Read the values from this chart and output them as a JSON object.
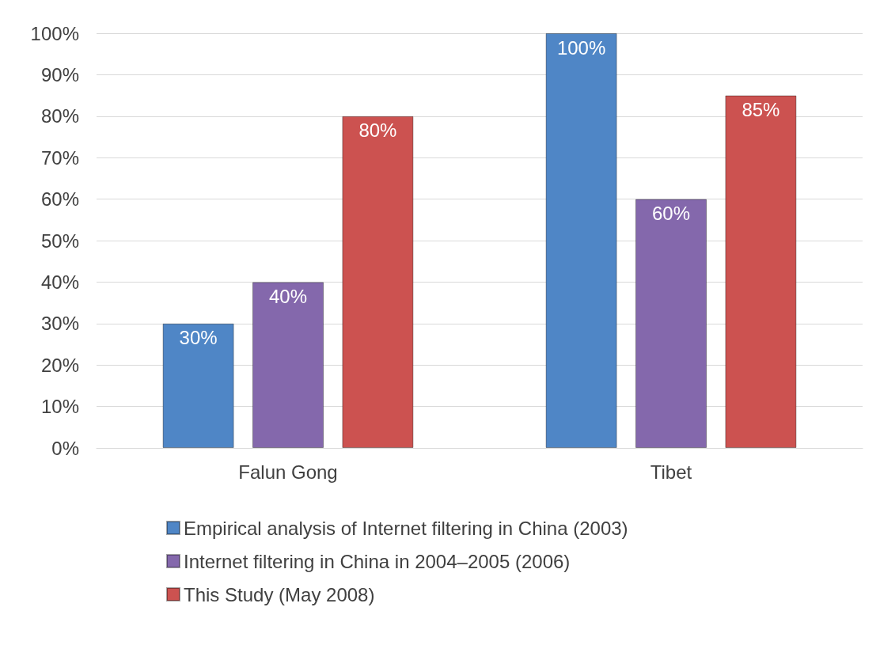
{
  "chart_data": {
    "type": "bar",
    "categories": [
      "Falun Gong",
      "Tibet"
    ],
    "series": [
      {
        "name": "Empirical analysis of Internet filtering in China (2003)",
        "color": "#4f86c6",
        "values": [
          30,
          100
        ],
        "value_labels": [
          "30%",
          "100%"
        ]
      },
      {
        "name": "Internet filtering in China in 2004–2005 (2006)",
        "color": "#8468ac",
        "values": [
          40,
          60
        ],
        "value_labels": [
          "40%",
          "60%"
        ]
      },
      {
        "name": "This Study (May 2008)",
        "color": "#cc5250",
        "values": [
          80,
          85
        ],
        "value_labels": [
          "80%",
          "85%"
        ]
      }
    ],
    "ylim": [
      0,
      100
    ],
    "yticks": [
      {
        "value": 0,
        "label": "0%"
      },
      {
        "value": 10,
        "label": "10%"
      },
      {
        "value": 20,
        "label": "20%"
      },
      {
        "value": 30,
        "label": "30%"
      },
      {
        "value": 40,
        "label": "40%"
      },
      {
        "value": 50,
        "label": "50%"
      },
      {
        "value": 60,
        "label": "60%"
      },
      {
        "value": 70,
        "label": "70%"
      },
      {
        "value": 80,
        "label": "80%"
      },
      {
        "value": 90,
        "label": "90%"
      },
      {
        "value": 100,
        "label": "100%"
      }
    ],
    "grid": "y",
    "legend": "bottom"
  }
}
